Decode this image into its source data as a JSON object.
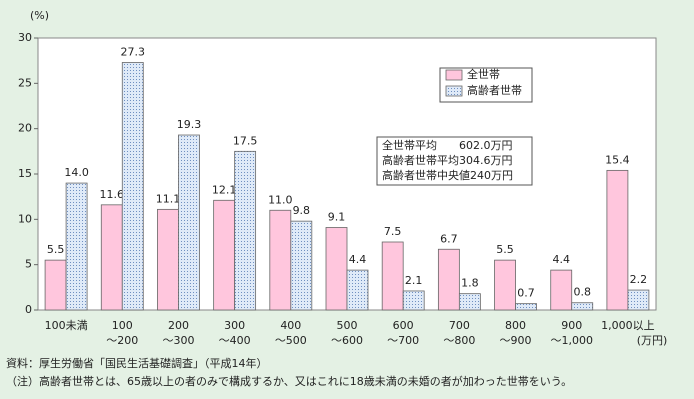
{
  "chart_data": {
    "type": "bar",
    "y_unit": "(%)",
    "x_unit": "(万円)",
    "categories": [
      [
        "100未満"
      ],
      [
        "100",
        "～200"
      ],
      [
        "200",
        "～300"
      ],
      [
        "300",
        "～400"
      ],
      [
        "400",
        "～500"
      ],
      [
        "500",
        "～600"
      ],
      [
        "600",
        "～700"
      ],
      [
        "700",
        "～800"
      ],
      [
        "800",
        "～900"
      ],
      [
        "900",
        "～1,000"
      ],
      [
        "1,000以上"
      ]
    ],
    "series": [
      {
        "name": "全世帯",
        "color": "#ffc6dd",
        "values": [
          5.5,
          11.6,
          11.1,
          12.1,
          11.0,
          9.1,
          7.5,
          6.7,
          5.5,
          4.4,
          15.4
        ],
        "value_labels": [
          "5.5",
          "11.6",
          "11.1",
          "12.1",
          "11.0",
          "9.1",
          "7.5",
          "6.7",
          "5.5",
          "4.4",
          "15.4"
        ]
      },
      {
        "name": "高齢者世帯",
        "color": "#c9dcf2",
        "pattern": "dots",
        "values": [
          14.0,
          27.3,
          19.3,
          17.5,
          9.8,
          4.4,
          2.1,
          1.8,
          0.7,
          0.8,
          2.2
        ],
        "value_labels": [
          "14.0",
          "27.3",
          "19.3",
          "17.5",
          "9.8",
          "4.4",
          "2.1",
          "1.8",
          "0.7",
          "0.8",
          "2.2"
        ]
      }
    ],
    "ylim": [
      0,
      30
    ],
    "yticks": [
      0,
      5,
      10,
      15,
      20,
      25,
      30
    ],
    "grid": false,
    "legend": "upper right",
    "annotation": [
      "全世帯平均　　602.0万円",
      "高齢者世帯平均304.6万円",
      "高齢者世帯中央値240万円"
    ],
    "footnotes": [
      "資料：厚生労働省「国民生活基礎調査」（平成14年）",
      "（注）高齢者世帯とは、65歳以上の者のみで構成するか、又はこれに18歳未満の未婚の者が加わった世帯をいう。"
    ]
  }
}
